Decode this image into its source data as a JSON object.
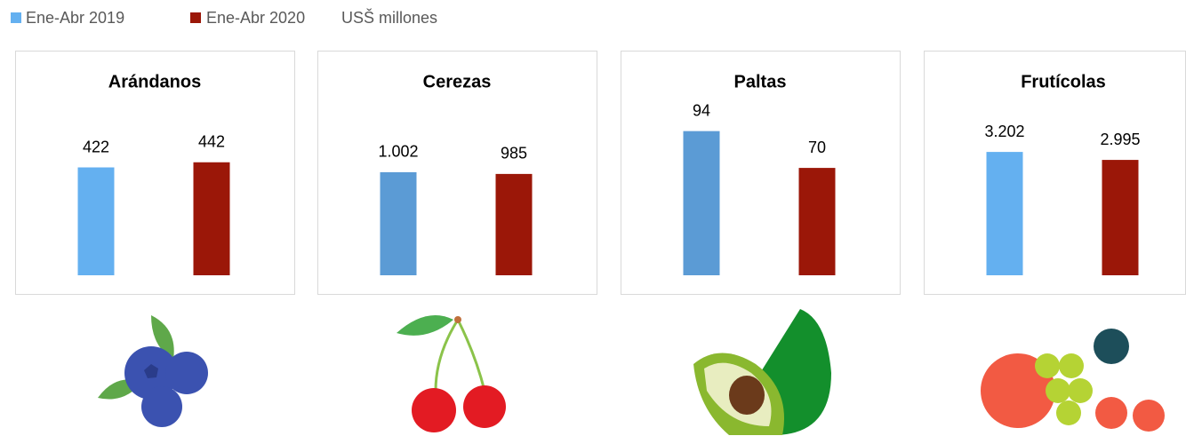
{
  "legend": [
    {
      "name": "Ene-Abr 2019",
      "color": "#64b0f0"
    },
    {
      "name": "Ene-Abr 2020",
      "color": "#9b1708"
    }
  ],
  "unit": "USŠ millones",
  "chart_data": [
    {
      "type": "bar",
      "title": "Arándanos",
      "values": [
        422,
        442
      ],
      "colors": [
        "#64b0f0",
        "#9b1708"
      ],
      "ylim": [
        0,
        660
      ]
    },
    {
      "type": "bar",
      "title": "Cerezas",
      "values": [
        1002,
        985
      ],
      "value_labels": [
        "1.002",
        "985"
      ],
      "colors": [
        "#5b9bd5",
        "#9b1708"
      ],
      "ylim": [
        0,
        1640
      ]
    },
    {
      "type": "bar",
      "title": "Paltas",
      "values": [
        94,
        70
      ],
      "colors": [
        "#5b9bd5",
        "#9b1708"
      ],
      "ylim": [
        0,
        110
      ]
    },
    {
      "type": "bar",
      "title": "Frutícolas",
      "values": [
        3202,
        2995
      ],
      "value_labels": [
        "3.202",
        "2.995"
      ],
      "colors": [
        "#64b0f0",
        "#9b1708"
      ],
      "ylim": [
        0,
        4380
      ]
    }
  ]
}
